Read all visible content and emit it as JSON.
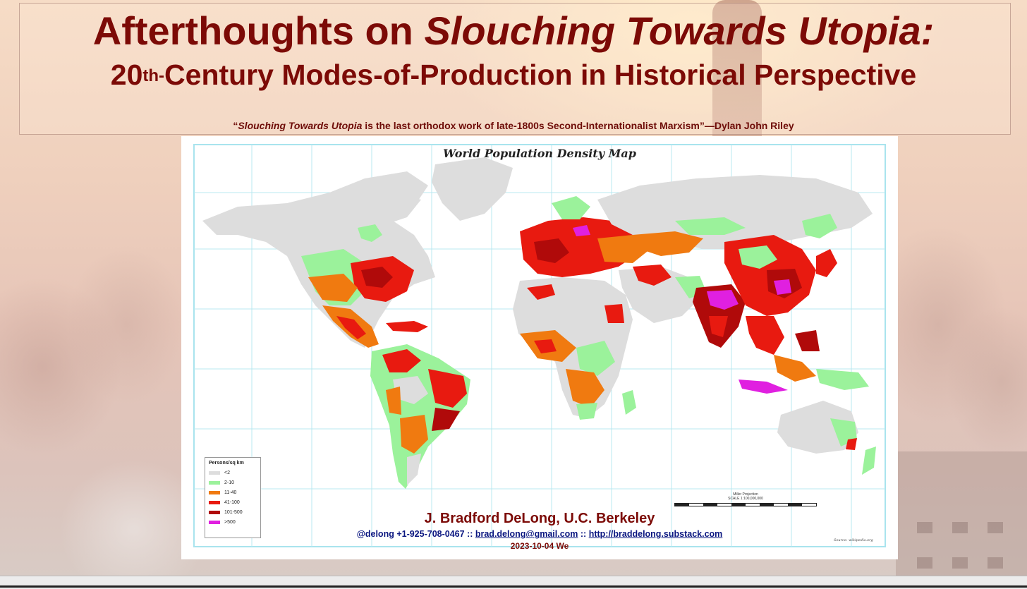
{
  "slide": {
    "title_prefix": "Afterthoughts on ",
    "title_italic": "Slouching Towards Utopia:",
    "subtitle_prefix": "20",
    "subtitle_sup": "th-",
    "subtitle_rest": "Century Modes-of-Production in Historical Perspective",
    "quote_open": "“",
    "quote_italic": "Slouching Towards Utopia",
    "quote_rest": " is the last orthodox work of late-1800s Second-Internationalist Marxism”—Dylan John Riley"
  },
  "map": {
    "title": "World Population Density Map",
    "legend": {
      "title": "Persons/sq km",
      "items": [
        {
          "label": "<2",
          "color": "#dddddd"
        },
        {
          "label": "2-10",
          "color": "#9bf29b"
        },
        {
          "label": "11-40",
          "color": "#f07a10"
        },
        {
          "label": "41-100",
          "color": "#e81a10"
        },
        {
          "label": "101-500",
          "color": "#b00a0a"
        },
        {
          "label": ">500",
          "color": "#e020e0"
        }
      ]
    },
    "scale_projection": "Miller Projection",
    "scale_text": "SCALE 1:100,000,000",
    "source": "Source: wikipedia.org"
  },
  "footer": {
    "author": "J. Bradford DeLong, U.C. Berkeley",
    "contact_prefix": "@delong +1-925-708-0467 :: ",
    "email": "brad.delong@gmail.com",
    "separator": " :: ",
    "url": "http://braddelong.substack.com",
    "date": "2023-10-04 We"
  },
  "colors": {
    "title": "#7c0a06",
    "contact": "#0a1680",
    "land_low": "#dddddd",
    "land_sparse": "#9bf29b",
    "land_mid": "#f07a10",
    "land_high": "#e81a10",
    "land_veryhigh": "#b00a0a",
    "land_max": "#e020e0"
  }
}
